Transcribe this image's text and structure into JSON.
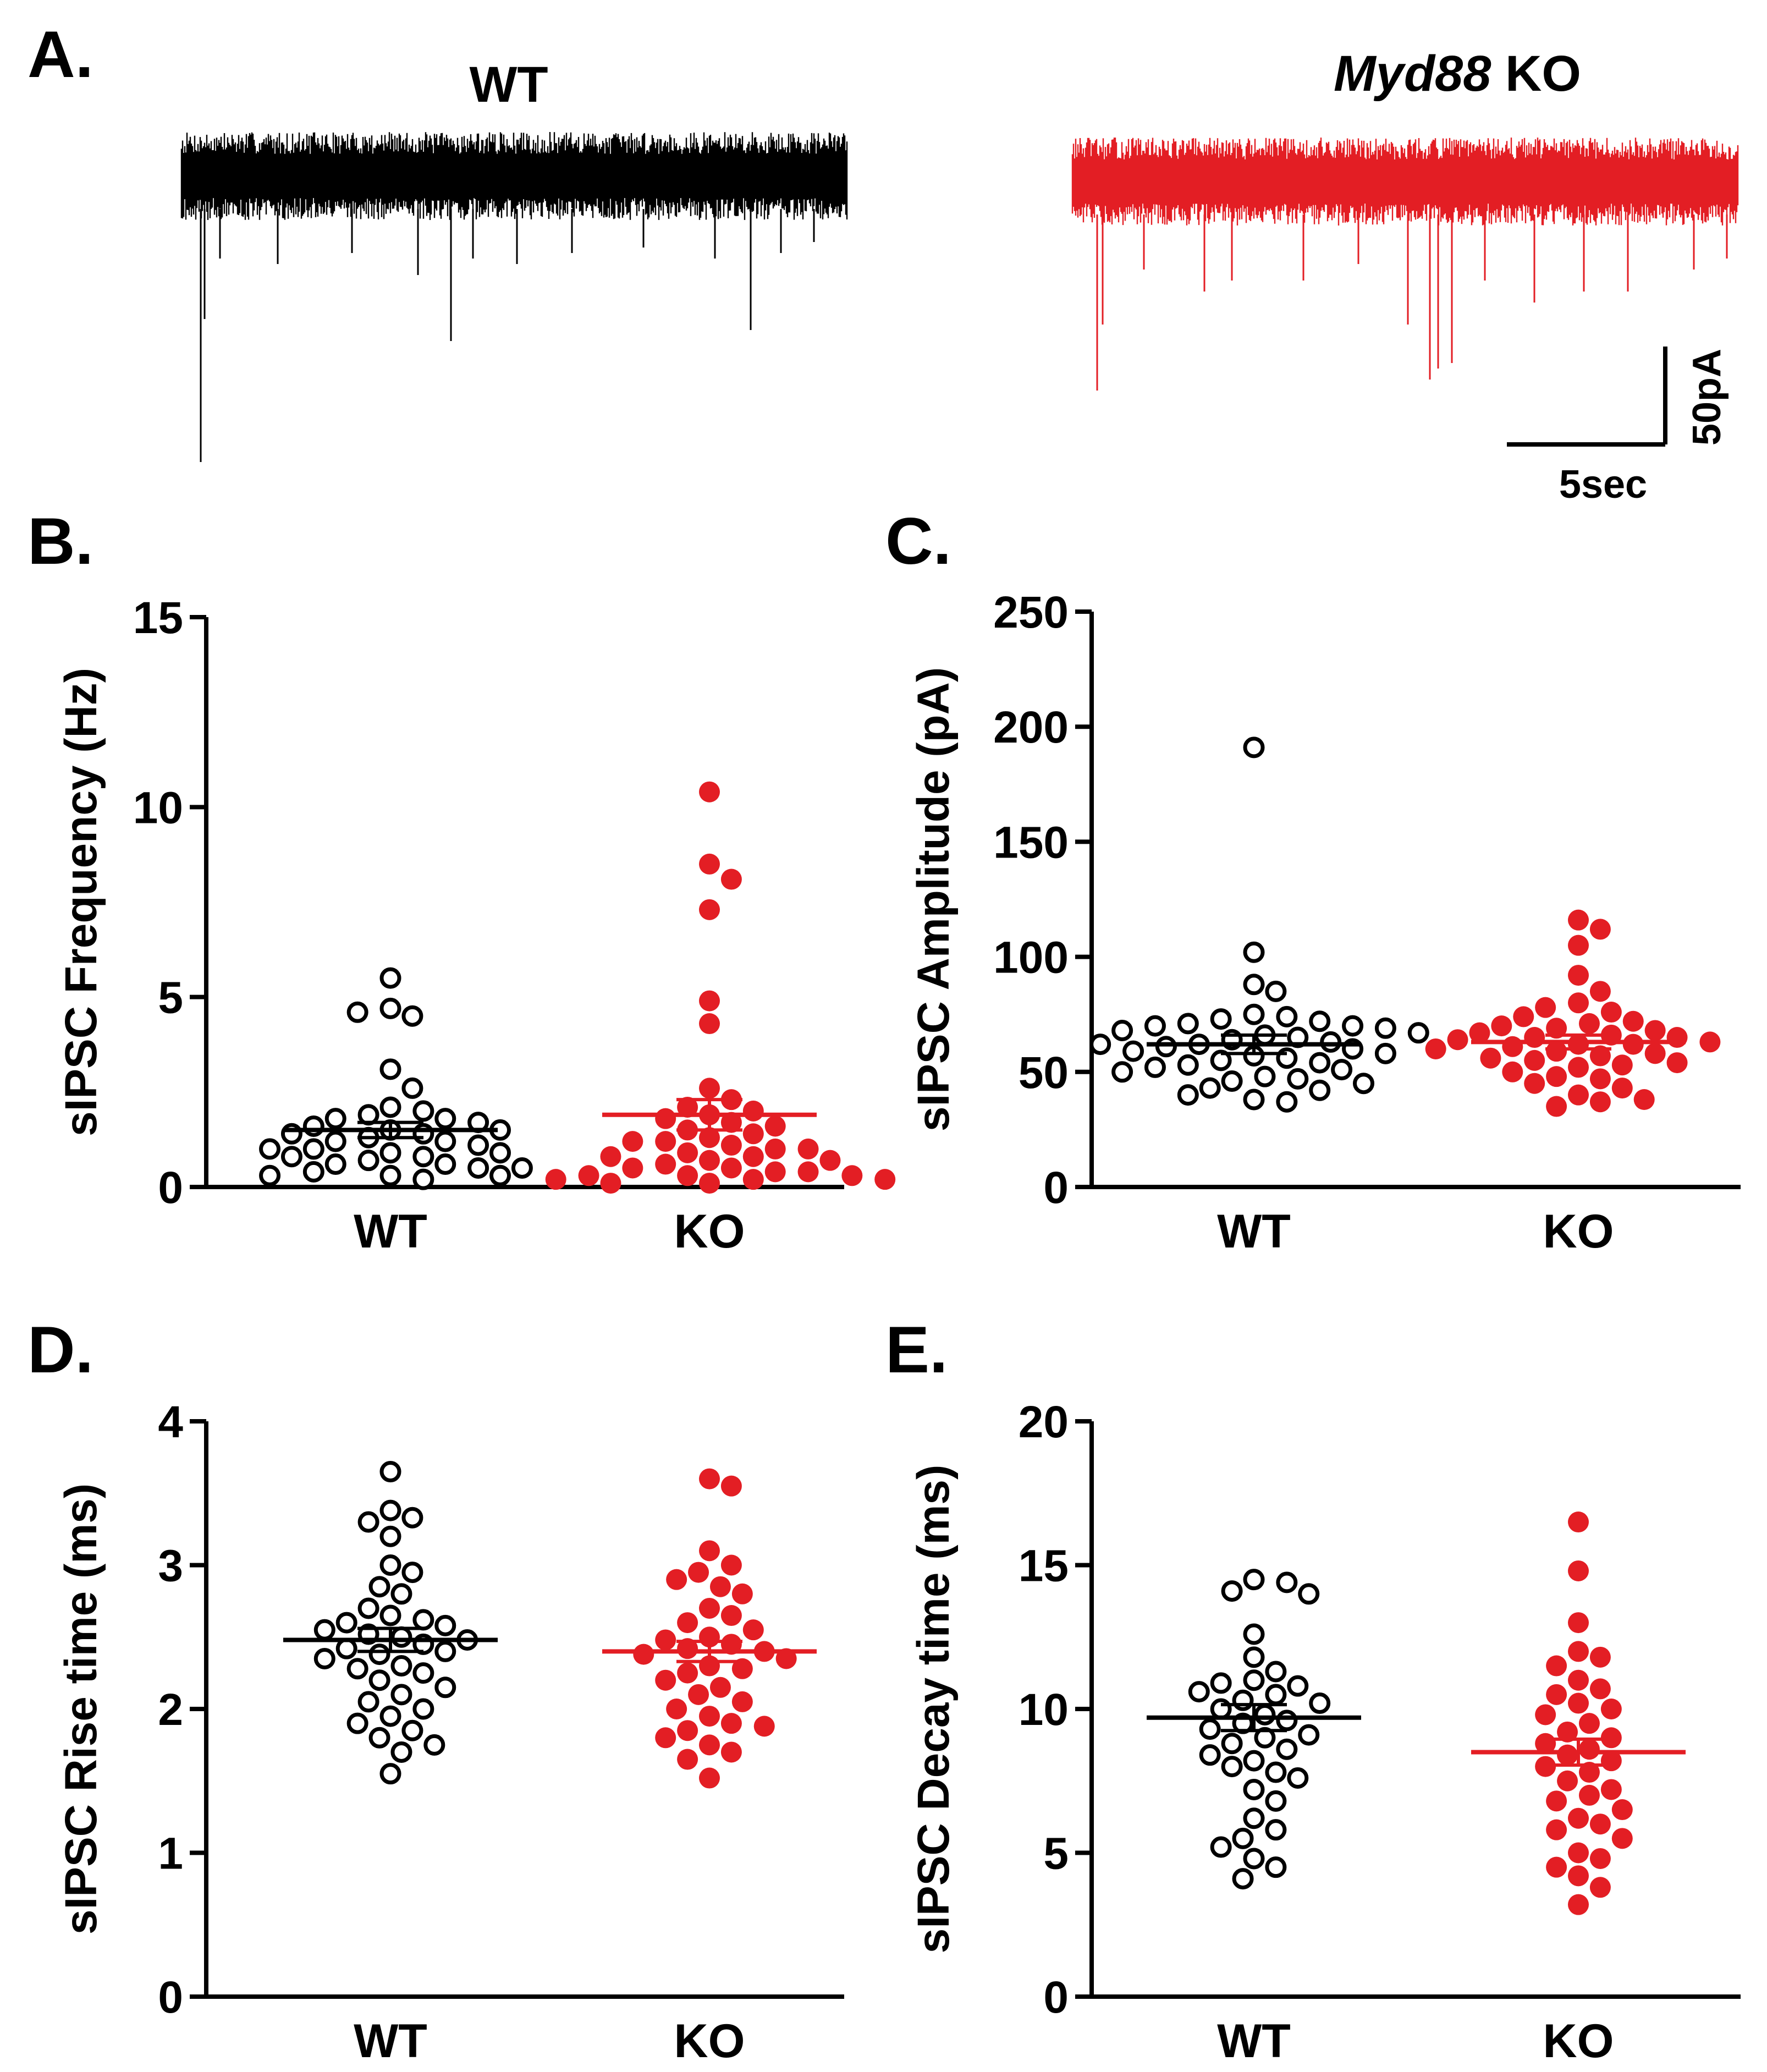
{
  "colors": {
    "wt": "#000000",
    "ko": "#e31e24",
    "background": "#ffffff"
  },
  "panel_a": {
    "label": "A.",
    "wt_title": "WT",
    "ko_title_italic": "Myd88",
    "ko_title_rest": " KO",
    "scalebar_y": "50pA",
    "scalebar_x": "5sec"
  },
  "chart_data": [
    {
      "panel": "B.",
      "type": "scatter",
      "ylabel": "sIPSC Frequency (Hz)",
      "categories": [
        "WT",
        "KO"
      ],
      "ylim": [
        0,
        15
      ],
      "yticks": [
        0,
        5,
        10,
        15
      ],
      "series": [
        {
          "name": "WT",
          "marker": "open",
          "mean": 1.5,
          "sem": 0.2,
          "values": [
            5.5,
            4.7,
            4.5,
            4.6,
            3.1,
            2.6,
            2.1,
            2.0,
            1.9,
            1.8,
            1.8,
            1.7,
            1.6,
            1.5,
            1.5,
            1.4,
            1.4,
            1.3,
            1.2,
            1.2,
            1.1,
            1.0,
            1.0,
            0.9,
            0.9,
            0.8,
            0.8,
            0.7,
            0.6,
            0.6,
            0.5,
            0.5,
            0.4,
            0.3,
            0.3,
            0.3,
            0.2
          ]
        },
        {
          "name": "KO",
          "marker": "filled",
          "mean": 1.9,
          "sem": 0.4,
          "values": [
            10.4,
            8.5,
            8.1,
            7.3,
            4.9,
            4.3,
            2.6,
            2.3,
            2.1,
            2.0,
            1.9,
            1.8,
            1.7,
            1.6,
            1.5,
            1.4,
            1.3,
            1.2,
            1.2,
            1.1,
            1.0,
            1.0,
            0.9,
            0.8,
            0.8,
            0.7,
            0.7,
            0.6,
            0.5,
            0.5,
            0.4,
            0.4,
            0.3,
            0.3,
            0.3,
            0.2,
            0.2,
            0.2,
            0.1,
            0.1
          ]
        }
      ]
    },
    {
      "panel": "C.",
      "type": "scatter",
      "ylabel": "sIPSC Amplitude (pA)",
      "categories": [
        "WT",
        "KO"
      ],
      "ylim": [
        0,
        250
      ],
      "yticks": [
        0,
        50,
        100,
        150,
        200,
        250
      ],
      "series": [
        {
          "name": "WT",
          "marker": "open",
          "mean": 62,
          "sem": 4,
          "values": [
            191,
            102,
            88,
            85,
            75,
            74,
            73,
            72,
            71,
            70,
            70,
            69,
            68,
            67,
            66,
            65,
            64,
            63,
            62,
            62,
            61,
            60,
            59,
            58,
            57,
            56,
            55,
            54,
            53,
            52,
            51,
            50,
            48,
            47,
            46,
            45,
            43,
            42,
            40,
            38,
            37
          ]
        },
        {
          "name": "KO",
          "marker": "filled",
          "mean": 63,
          "sem": 3,
          "values": [
            116,
            112,
            105,
            92,
            85,
            80,
            78,
            76,
            74,
            72,
            71,
            70,
            69,
            68,
            67,
            66,
            65,
            65,
            64,
            63,
            62,
            62,
            61,
            60,
            59,
            58,
            57,
            56,
            55,
            54,
            53,
            52,
            50,
            48,
            47,
            45,
            43,
            40,
            38,
            37,
            35
          ]
        }
      ]
    },
    {
      "panel": "D.",
      "type": "scatter",
      "ylabel": "sIPSC Rise time (ms)",
      "categories": [
        "WT",
        "KO"
      ],
      "ylim": [
        0,
        4
      ],
      "yticks": [
        0,
        1,
        2,
        3,
        4
      ],
      "series": [
        {
          "name": "WT",
          "marker": "open",
          "mean": 2.48,
          "sem": 0.08,
          "values": [
            3.65,
            3.38,
            3.33,
            3.3,
            3.2,
            3.0,
            2.95,
            2.85,
            2.8,
            2.7,
            2.65,
            2.62,
            2.6,
            2.58,
            2.55,
            2.52,
            2.5,
            2.48,
            2.45,
            2.42,
            2.4,
            2.38,
            2.35,
            2.3,
            2.28,
            2.25,
            2.2,
            2.15,
            2.1,
            2.05,
            2.0,
            1.95,
            1.9,
            1.85,
            1.8,
            1.75,
            1.7,
            1.55
          ]
        },
        {
          "name": "KO",
          "marker": "filled",
          "mean": 2.4,
          "sem": 0.07,
          "values": [
            3.6,
            3.55,
            3.1,
            3.0,
            2.95,
            2.9,
            2.85,
            2.8,
            2.7,
            2.65,
            2.6,
            2.55,
            2.5,
            2.48,
            2.45,
            2.42,
            2.4,
            2.38,
            2.35,
            2.3,
            2.28,
            2.25,
            2.2,
            2.15,
            2.1,
            2.05,
            2.0,
            1.95,
            1.9,
            1.88,
            1.85,
            1.8,
            1.75,
            1.7,
            1.65,
            1.52
          ]
        }
      ]
    },
    {
      "panel": "E.",
      "type": "scatter",
      "ylabel": "sIPSC Decay time (ms)",
      "categories": [
        "WT",
        "KO"
      ],
      "ylim": [
        0,
        20
      ],
      "yticks": [
        0,
        5,
        10,
        15,
        20
      ],
      "series": [
        {
          "name": "WT",
          "marker": "open",
          "mean": 9.7,
          "sem": 0.45,
          "values": [
            14.5,
            14.4,
            14.1,
            14.0,
            12.6,
            11.8,
            11.3,
            11.0,
            10.9,
            10.8,
            10.6,
            10.5,
            10.3,
            10.2,
            10.0,
            9.8,
            9.6,
            9.5,
            9.3,
            9.1,
            9.0,
            8.8,
            8.6,
            8.4,
            8.2,
            8.0,
            7.8,
            7.6,
            7.2,
            6.8,
            6.2,
            5.8,
            5.5,
            5.2,
            4.8,
            4.5,
            4.1
          ]
        },
        {
          "name": "KO",
          "marker": "filled",
          "mean": 8.5,
          "sem": 0.45,
          "values": [
            16.5,
            14.8,
            13.0,
            12.0,
            11.8,
            11.5,
            11.0,
            10.7,
            10.5,
            10.2,
            10.0,
            9.8,
            9.5,
            9.2,
            9.0,
            8.8,
            8.6,
            8.4,
            8.2,
            8.0,
            7.8,
            7.5,
            7.2,
            7.0,
            6.8,
            6.5,
            6.2,
            6.0,
            5.8,
            5.5,
            5.0,
            4.8,
            4.5,
            4.2,
            3.8,
            3.2
          ]
        }
      ]
    }
  ]
}
